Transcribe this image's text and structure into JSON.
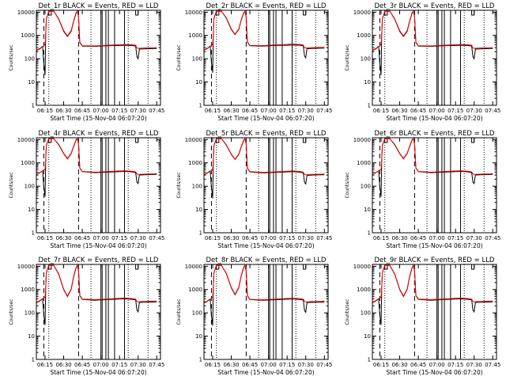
{
  "panel_common": {
    "title_suffix": " BLACK = Events, RED = LLD",
    "xlabel": "Start Time (15-Nov-04 06:07:20)",
    "ylabel": "Counts/sec"
  },
  "shared_axes": {
    "x_tick_labels": [
      "06:15",
      "06:30",
      "06:45",
      "07:00",
      "07:15",
      "07:30",
      "07:45"
    ],
    "x_tick_minutes": [
      15,
      30,
      45,
      60,
      75,
      90,
      105
    ],
    "xlim_minutes": [
      8,
      108
    ],
    "yscale": "log",
    "ylim": [
      1,
      12000
    ],
    "y_tick_values": [
      1,
      10,
      100,
      1000,
      10000
    ],
    "y_tick_labels": [
      "1",
      "10",
      "100",
      "1000",
      "10000"
    ]
  },
  "markers": {
    "dashed_minutes": [
      14,
      42
    ],
    "dotted_minutes": [
      18,
      52,
      82,
      98
    ],
    "solid_minutes": [
      60,
      61,
      64,
      66,
      71,
      79
    ]
  },
  "series_colors": {
    "events": "#000000",
    "lld": "#ff0000"
  },
  "chart_data": [
    {
      "type": "line",
      "title": "Det_1r BLACK = Events, RED = LLD",
      "panel_name": "Det_1r",
      "xlabel": "Start Time (15-Nov-04 06:07:20)",
      "ylabel": "Counts/sec",
      "x_minutes": [
        8,
        11,
        13,
        14,
        14.5,
        15,
        15.5,
        16,
        18,
        22,
        26,
        30,
        33,
        36,
        38,
        40,
        41,
        42,
        43,
        45,
        55,
        65,
        75,
        80,
        85,
        88,
        89,
        90,
        91,
        95,
        100,
        105
      ],
      "series": [
        {
          "name": "BLACK = Events",
          "values": [
            220,
            270,
            330,
            60,
            40,
            20,
            1000,
            5000,
            11000,
            11000,
            5000,
            1500,
            900,
            1500,
            4000,
            9000,
            11000,
            6000,
            500,
            350,
            340,
            360,
            370,
            380,
            370,
            350,
            120,
            100,
            260,
            265,
            270,
            275
          ]
        },
        {
          "name": "RED = LLD",
          "values": [
            230,
            280,
            340,
            350,
            380,
            420,
            1100,
            5200,
            11000,
            11000,
            5200,
            1600,
            950,
            1600,
            4200,
            9500,
            11000,
            6500,
            520,
            360,
            355,
            380,
            400,
            410,
            400,
            380,
            290,
            280,
            280,
            290,
            295,
            300
          ]
        }
      ]
    },
    {
      "type": "line",
      "title": "Det_2r BLACK = Events, RED = LLD",
      "panel_name": "Det_2r",
      "xlabel": "Start Time (15-Nov-04 06:07:20)",
      "ylabel": "Counts/sec",
      "x_minutes": [
        8,
        11,
        13,
        14,
        14.5,
        15,
        15.5,
        16,
        18,
        22,
        26,
        30,
        33,
        36,
        38,
        40,
        41,
        42,
        43,
        45,
        55,
        65,
        75,
        80,
        85,
        88,
        89,
        90,
        91,
        95,
        100,
        105
      ],
      "series": [
        {
          "name": "BLACK = Events",
          "values": [
            230,
            280,
            340,
            70,
            45,
            25,
            1100,
            5200,
            11000,
            11000,
            5500,
            1800,
            1100,
            1800,
            4500,
            9000,
            11000,
            6000,
            520,
            360,
            350,
            370,
            380,
            390,
            380,
            360,
            130,
            110,
            270,
            275,
            280,
            285
          ]
        },
        {
          "name": "RED = LLD",
          "values": [
            240,
            290,
            350,
            360,
            390,
            430,
            1200,
            5400,
            11000,
            11000,
            5700,
            1900,
            1150,
            1900,
            4700,
            9500,
            11000,
            6500,
            540,
            370,
            365,
            390,
            410,
            420,
            410,
            390,
            300,
            290,
            290,
            300,
            305,
            310
          ]
        }
      ]
    },
    {
      "type": "line",
      "title": "Det_3r BLACK = Events, RED = LLD",
      "panel_name": "Det_3r",
      "xlabel": "Start Time (15-Nov-04 06:07:20)",
      "ylabel": "Counts/sec",
      "x_minutes": [
        8,
        11,
        13,
        14,
        14.5,
        15,
        15.5,
        16,
        18,
        22,
        26,
        30,
        33,
        36,
        38,
        40,
        41,
        42,
        43,
        45,
        55,
        65,
        75,
        80,
        85,
        88,
        89,
        90,
        91,
        95,
        100,
        105
      ],
      "series": [
        {
          "name": "BLACK = Events",
          "values": [
            220,
            270,
            330,
            60,
            40,
            20,
            1000,
            5000,
            11000,
            11000,
            5000,
            1500,
            900,
            1500,
            4000,
            9000,
            11000,
            6000,
            500,
            350,
            340,
            360,
            370,
            380,
            370,
            350,
            120,
            100,
            260,
            265,
            270,
            275
          ]
        },
        {
          "name": "RED = LLD",
          "values": [
            230,
            280,
            340,
            350,
            380,
            420,
            1100,
            5200,
            11000,
            11000,
            5200,
            1600,
            950,
            1600,
            4200,
            9500,
            11000,
            6500,
            520,
            360,
            355,
            380,
            400,
            410,
            400,
            380,
            290,
            280,
            280,
            290,
            295,
            300
          ]
        }
      ]
    },
    {
      "type": "line",
      "title": "Det_4r BLACK = Events, RED = LLD",
      "panel_name": "Det_4r",
      "xlabel": "Start Time (15-Nov-04 06:07:20)",
      "ylabel": "Counts/sec",
      "x_minutes": [
        8,
        11,
        13,
        14,
        14.5,
        15,
        15.5,
        16,
        18,
        22,
        26,
        30,
        33,
        36,
        38,
        40,
        41,
        42,
        43,
        45,
        55,
        65,
        75,
        80,
        85,
        88,
        89,
        90,
        91,
        95,
        100,
        105
      ],
      "series": [
        {
          "name": "BLACK = Events",
          "values": [
            320,
            380,
            450,
            90,
            60,
            35,
            1200,
            5500,
            11000,
            11000,
            6000,
            2500,
            1500,
            2500,
            5000,
            9500,
            11000,
            6500,
            600,
            420,
            380,
            400,
            420,
            430,
            410,
            380,
            150,
            130,
            300,
            310,
            315,
            320
          ]
        },
        {
          "name": "RED = LLD",
          "values": [
            330,
            390,
            460,
            470,
            500,
            540,
            1300,
            5700,
            11000,
            11000,
            6200,
            2600,
            1550,
            2600,
            5200,
            10000,
            11000,
            7000,
            620,
            430,
            400,
            420,
            450,
            460,
            440,
            410,
            330,
            320,
            320,
            330,
            335,
            340
          ]
        }
      ]
    },
    {
      "type": "line",
      "title": "Det_5r BLACK = Events, RED = LLD",
      "panel_name": "Det_5r",
      "xlabel": "Start Time (15-Nov-04 06:07:20)",
      "ylabel": "Counts/sec",
      "x_minutes": [
        8,
        11,
        13,
        14,
        14.5,
        15,
        15.5,
        16,
        18,
        22,
        26,
        30,
        33,
        36,
        38,
        40,
        41,
        42,
        43,
        45,
        55,
        65,
        75,
        80,
        85,
        88,
        89,
        90,
        91,
        95,
        100,
        105
      ],
      "series": [
        {
          "name": "BLACK = Events",
          "values": [
            310,
            370,
            440,
            85,
            55,
            30,
            1150,
            5400,
            11000,
            11000,
            5800,
            2300,
            1400,
            2300,
            4800,
            9200,
            11000,
            6300,
            580,
            410,
            370,
            390,
            410,
            420,
            400,
            370,
            145,
            125,
            290,
            300,
            305,
            310
          ]
        },
        {
          "name": "RED = LLD",
          "values": [
            320,
            380,
            450,
            460,
            490,
            530,
            1250,
            5600,
            11000,
            11000,
            6000,
            2400,
            1450,
            2400,
            5000,
            9700,
            11000,
            6800,
            600,
            420,
            390,
            410,
            440,
            450,
            430,
            400,
            320,
            310,
            310,
            320,
            325,
            330
          ]
        }
      ]
    },
    {
      "type": "line",
      "title": "Det_6r BLACK = Events, RED = LLD",
      "panel_name": "Det_6r",
      "xlabel": "Start Time (15-Nov-04 06:07:20)",
      "ylabel": "Counts/sec",
      "x_minutes": [
        8,
        11,
        13,
        14,
        14.5,
        15,
        15.5,
        16,
        18,
        22,
        26,
        30,
        33,
        36,
        38,
        40,
        41,
        42,
        43,
        45,
        55,
        65,
        75,
        80,
        85,
        88,
        89,
        90,
        91,
        95,
        100,
        105
      ],
      "series": [
        {
          "name": "BLACK = Events",
          "values": [
            320,
            380,
            450,
            90,
            60,
            35,
            1200,
            5500,
            11000,
            11000,
            6000,
            2500,
            1500,
            2500,
            5000,
            9500,
            11000,
            6500,
            600,
            420,
            380,
            400,
            420,
            430,
            410,
            380,
            150,
            130,
            300,
            310,
            315,
            320
          ]
        },
        {
          "name": "RED = LLD",
          "values": [
            330,
            390,
            460,
            470,
            500,
            540,
            1300,
            5700,
            11000,
            11000,
            6200,
            2600,
            1550,
            2600,
            5200,
            10000,
            11000,
            7000,
            620,
            430,
            400,
            420,
            450,
            460,
            440,
            410,
            330,
            320,
            320,
            330,
            335,
            340
          ]
        }
      ]
    },
    {
      "type": "line",
      "title": "Det_7r BLACK = Events, RED = LLD",
      "panel_name": "Det_7r",
      "xlabel": "Start Time (15-Nov-04 06:07:20)",
      "ylabel": "Counts/sec",
      "x_minutes": [
        8,
        11,
        13,
        14,
        14.5,
        15,
        15.5,
        16,
        18,
        22,
        26,
        30,
        33,
        36,
        38,
        40,
        41,
        42,
        43,
        45,
        55,
        65,
        75,
        80,
        85,
        88,
        89,
        90,
        91,
        95,
        100,
        105
      ],
      "series": [
        {
          "name": "BLACK = Events",
          "values": [
            270,
            330,
            400,
            80,
            50,
            30,
            1100,
            5200,
            11000,
            11000,
            4500,
            1000,
            500,
            1000,
            3500,
            8500,
            11000,
            6000,
            550,
            380,
            350,
            370,
            390,
            400,
            380,
            360,
            130,
            110,
            280,
            285,
            290,
            295
          ]
        },
        {
          "name": "RED = LLD",
          "values": [
            280,
            340,
            410,
            420,
            450,
            490,
            1200,
            5400,
            11000,
            11000,
            4700,
            1050,
            530,
            1050,
            3700,
            9000,
            11000,
            6500,
            570,
            390,
            370,
            390,
            420,
            430,
            410,
            390,
            310,
            300,
            300,
            310,
            315,
            320
          ]
        }
      ]
    },
    {
      "type": "line",
      "title": "Det_8r BLACK = Events, RED = LLD",
      "panel_name": "Det_8r",
      "xlabel": "Start Time (15-Nov-04 06:07:20)",
      "ylabel": "Counts/sec",
      "x_minutes": [
        8,
        11,
        13,
        14,
        14.5,
        15,
        15.5,
        16,
        18,
        22,
        26,
        30,
        33,
        36,
        38,
        40,
        41,
        42,
        43,
        45,
        55,
        65,
        75,
        80,
        85,
        88,
        89,
        90,
        91,
        95,
        100,
        105
      ],
      "series": [
        {
          "name": "BLACK = Events",
          "values": [
            260,
            320,
            390,
            75,
            50,
            28,
            1100,
            5100,
            11000,
            11000,
            4800,
            1200,
            600,
            1200,
            3800,
            8800,
            11000,
            6000,
            540,
            370,
            345,
            365,
            385,
            395,
            375,
            355,
            125,
            105,
            275,
            280,
            285,
            290
          ]
        },
        {
          "name": "RED = LLD",
          "values": [
            270,
            330,
            400,
            410,
            440,
            480,
            1200,
            5300,
            11000,
            11000,
            5000,
            1250,
            630,
            1250,
            4000,
            9200,
            11000,
            6500,
            560,
            380,
            365,
            385,
            415,
            425,
            405,
            385,
            305,
            295,
            295,
            305,
            310,
            315
          ]
        }
      ]
    },
    {
      "type": "line",
      "title": "Det_9r BLACK = Events, RED = LLD",
      "panel_name": "Det_9r",
      "xlabel": "Start Time (15-Nov-04 06:07:20)",
      "ylabel": "Counts/sec",
      "x_minutes": [
        8,
        11,
        13,
        14,
        14.5,
        15,
        15.5,
        16,
        18,
        22,
        26,
        30,
        33,
        36,
        38,
        40,
        41,
        42,
        43,
        45,
        55,
        65,
        75,
        80,
        85,
        88,
        89,
        90,
        91,
        95,
        100,
        105
      ],
      "series": [
        {
          "name": "BLACK = Events",
          "values": [
            270,
            330,
            400,
            80,
            50,
            30,
            1100,
            5200,
            11000,
            11000,
            4500,
            1000,
            500,
            1000,
            3500,
            8500,
            11000,
            6000,
            550,
            380,
            350,
            370,
            390,
            400,
            380,
            360,
            130,
            110,
            280,
            285,
            290,
            295
          ]
        },
        {
          "name": "RED = LLD",
          "values": [
            280,
            340,
            410,
            420,
            450,
            490,
            1200,
            5400,
            11000,
            11000,
            4700,
            1050,
            530,
            1050,
            3700,
            9000,
            11000,
            6500,
            570,
            390,
            370,
            390,
            420,
            430,
            410,
            390,
            310,
            300,
            300,
            310,
            315,
            320
          ]
        }
      ]
    }
  ]
}
